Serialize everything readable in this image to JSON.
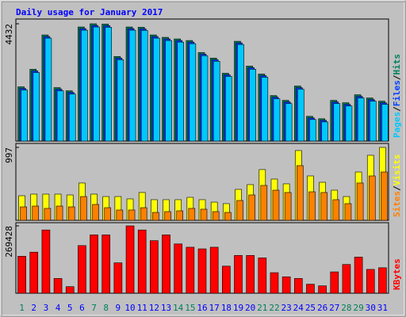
{
  "chart_data": {
    "type": "bar",
    "title": "Daily usage for January 2017",
    "categories": [
      "1",
      "2",
      "3",
      "4",
      "5",
      "6",
      "7",
      "8",
      "9",
      "10",
      "11",
      "12",
      "13",
      "14",
      "15",
      "16",
      "17",
      "18",
      "19",
      "20",
      "21",
      "22",
      "23",
      "24",
      "25",
      "26",
      "27",
      "28",
      "29",
      "30",
      "31"
    ],
    "highlight_categories": [
      "1",
      "7",
      "8",
      "14",
      "15",
      "21",
      "22",
      "28",
      "29"
    ],
    "label_color": "#0000ff",
    "highlight_color": "#00805c",
    "panels": [
      {
        "ylim": [
          0,
          4432
        ],
        "yticks": [
          4432
        ],
        "separator": "/",
        "series": [
          {
            "name": "Pages",
            "color": "#00c8ff",
            "values": [
              1930,
              2590,
              3890,
              1900,
              1780,
              4190,
              4310,
              4300,
              3076,
              4190,
              4180,
              3890,
              3800,
              3740,
              3680,
              3227,
              3016,
              2443,
              3650,
              2714,
              2413,
              1599,
              1418,
              1960,
              815,
              724,
              1418,
              1327,
              1629,
              1508,
              1388
            ]
          },
          {
            "name": "Files",
            "color": "#0040ff",
            "values": [
              1990,
              2650,
              3950,
              1960,
              1840,
              4250,
              4370,
              4360,
              3136,
              4250,
              4240,
              3950,
              3860,
              3800,
              3740,
              3287,
              3076,
              2503,
              3710,
              2774,
              2473,
              1659,
              1478,
              2020,
              875,
              784,
              1478,
              1387,
              1689,
              1568,
              1448
            ]
          },
          {
            "name": "Hits",
            "color": "#00805c",
            "values": [
              2050,
              2713,
              4010,
              2020,
              1900,
              4311,
              4432,
              4420,
              3196,
              4311,
              4300,
              4010,
              3920,
              3860,
              3800,
              3347,
              3136,
              2563,
              3770,
              2834,
              2533,
              1719,
              1538,
              2080,
              935,
              844,
              1538,
              1447,
              1749,
              1628,
              1508
            ]
          }
        ]
      },
      {
        "ylim": [
          0,
          997
        ],
        "yticks": [
          997
        ],
        "separator": "/",
        "series": [
          {
            "name": "Sites",
            "color": "#ff8000",
            "values": [
              184,
              195,
              163,
              195,
              184,
              325,
              217,
              173,
              141,
              141,
              173,
              108,
              119,
              130,
              163,
              152,
              119,
              108,
              271,
              347,
              477,
              412,
              380,
              748,
              390,
              380,
              282,
              228,
              510,
              607,
              661
            ]
          },
          {
            "name": "Visits",
            "color": "#ffff00",
            "values": [
              336,
              358,
              358,
              358,
              347,
              510,
              358,
              325,
              325,
              293,
              380,
              282,
              282,
              282,
              314,
              282,
              249,
              228,
              423,
              488,
              694,
              564,
              499,
              954,
              607,
              520,
              412,
              325,
              661,
              889,
              997
            ]
          }
        ]
      },
      {
        "ylim": [
          0,
          269428
        ],
        "yticks": [
          269428
        ],
        "separator": "/",
        "series": [
          {
            "name": "KBytes",
            "color": "#ff0000",
            "values": [
              147900,
              164300,
              253000,
              59100,
              26300,
              190600,
              233300,
              233300,
              121600,
              269428,
              253000,
              210300,
              233300,
              197200,
              184000,
              177400,
              184000,
              108400,
              151200,
              151200,
              141300,
              82200,
              65700,
              59100,
              36100,
              29600,
              85400,
              115000,
              144600,
              95300,
              101900
            ]
          }
        ]
      }
    ]
  }
}
